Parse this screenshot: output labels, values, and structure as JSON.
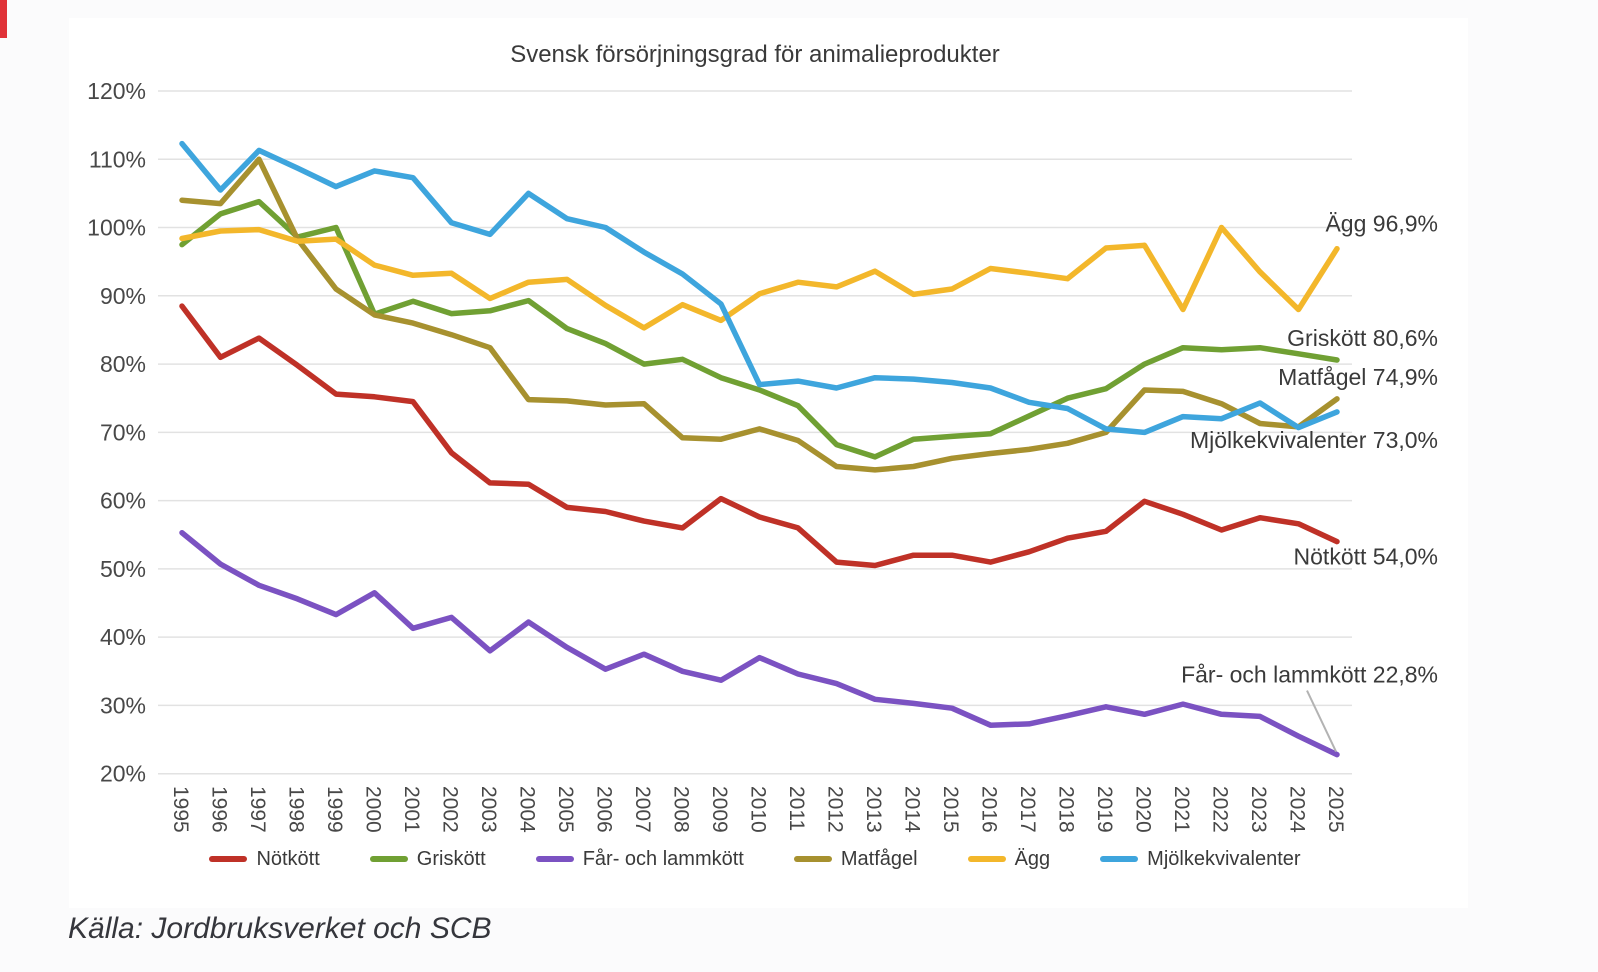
{
  "page": {
    "background": "#fbfbfc",
    "panel_background": "#ffffff",
    "accent_strip_color": "#e03238"
  },
  "title": "Svensk försörjningsgrad för animalieprodukter",
  "source_note": "Källa: Jordbruksverket och SCB",
  "chart_data": {
    "type": "line",
    "title": "Svensk försörjningsgrad för animalieprodukter",
    "xlabel": "",
    "ylabel": "",
    "grid": true,
    "legend_position": "bottom",
    "y_axis": {
      "min": 20,
      "max": 120,
      "step": 10
    },
    "y_tick_labels": [
      "120%",
      "110%",
      "100%",
      "90%",
      "80%",
      "70%",
      "60%",
      "50%",
      "40%",
      "30%",
      "20%"
    ],
    "x": [
      1995,
      1996,
      1997,
      1998,
      1999,
      2000,
      2001,
      2002,
      2003,
      2004,
      2005,
      2006,
      2007,
      2008,
      2009,
      2010,
      2011,
      2012,
      2013,
      2014,
      2015,
      2016,
      2017,
      2018,
      2019,
      2020,
      2021,
      2022,
      2023,
      2024,
      2025
    ],
    "series": [
      {
        "name": "Nötkött",
        "color": "#bf3127",
        "end_label": "Nötkött 54,0%",
        "values": [
          88.5,
          81,
          83.8,
          79.8,
          75.6,
          75.2,
          74.5,
          67,
          62.6,
          62.4,
          59,
          58.4,
          57,
          56,
          60.3,
          57.6,
          56,
          51,
          50.5,
          52,
          52,
          51,
          52.5,
          54.5,
          55.5,
          59.9,
          58,
          55.7,
          57.5,
          56.6,
          54
        ]
      },
      {
        "name": "Griskött",
        "color": "#70a033",
        "end_label": "Griskött 80,6%",
        "values": [
          97.5,
          102,
          103.8,
          98.6,
          100,
          87.3,
          89.2,
          87.4,
          87.8,
          89.3,
          85.2,
          83,
          80,
          80.7,
          78,
          76.2,
          73.9,
          68.2,
          66.4,
          69,
          69.4,
          69.8,
          72.4,
          75,
          76.4,
          80,
          82.4,
          82.1,
          82.4,
          81.5,
          80.6
        ]
      },
      {
        "name": "Får- och lammkött",
        "color": "#7b52c2",
        "end_label": "Får- och lammkött 22,8%",
        "values": [
          55.3,
          50.7,
          47.6,
          45.6,
          43.3,
          46.5,
          41.3,
          42.9,
          38,
          42.2,
          38.5,
          35.3,
          37.5,
          35,
          33.7,
          37,
          34.6,
          33.2,
          30.9,
          30.3,
          29.6,
          27.1,
          27.3,
          28.5,
          29.8,
          28.7,
          30.2,
          28.7,
          28.4,
          25.5,
          22.8
        ]
      },
      {
        "name": "Matfågel",
        "color": "#a7912f",
        "end_label": "Matfågel 74,9%",
        "values": [
          104,
          103.5,
          110,
          98.3,
          91,
          87.2,
          86,
          84.3,
          82.4,
          74.8,
          74.6,
          74,
          74.2,
          69.2,
          69,
          70.5,
          68.8,
          65,
          64.5,
          65,
          66.2,
          66.9,
          67.5,
          68.4,
          70,
          76.2,
          76,
          74.2,
          71.3,
          70.8,
          74.9
        ]
      },
      {
        "name": "Ägg",
        "color": "#f3b72b",
        "end_label": "Ägg 96,9%",
        "values": [
          98.4,
          99.5,
          99.7,
          98,
          98.3,
          94.5,
          93,
          93.3,
          89.6,
          92,
          92.4,
          88.6,
          85.3,
          88.7,
          86.4,
          90.3,
          92,
          91.3,
          93.6,
          90.2,
          91,
          94,
          93.3,
          92.5,
          97,
          97.4,
          88,
          100,
          93.5,
          88,
          96.9
        ]
      },
      {
        "name": "Mjölkekvivalenter",
        "color": "#3ea5dd",
        "end_label": "Mjölkekvivalenter 73,0%",
        "values": [
          112.3,
          105.5,
          111.3,
          108.7,
          106,
          108.3,
          107.3,
          100.7,
          99,
          105,
          101.3,
          100,
          96.4,
          93.2,
          88.8,
          77,
          77.5,
          76.5,
          78,
          77.8,
          77.3,
          76.5,
          74.4,
          73.5,
          70.5,
          70,
          72.3,
          72,
          74.3,
          70.7,
          73
        ]
      }
    ]
  }
}
